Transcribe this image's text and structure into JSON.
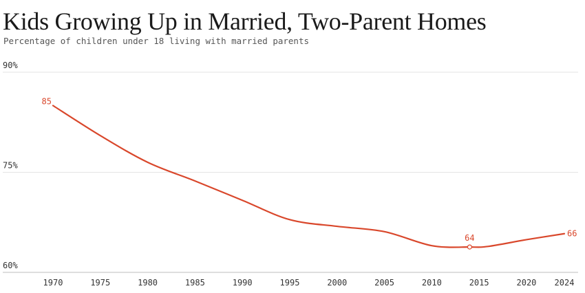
{
  "chart_data": {
    "type": "line",
    "title": "Kids Growing Up in Married, Two-Parent Homes",
    "subtitle": "Percentage of children under 18 living with married parents",
    "xlabel": "",
    "ylabel": "",
    "x_ticks": [
      "1970",
      "1975",
      "1980",
      "1985",
      "1990",
      "1995",
      "2000",
      "2005",
      "2010",
      "2015",
      "2020",
      "2024"
    ],
    "y_ticks": [
      "60%",
      "75%",
      "90%"
    ],
    "xlim": [
      1970,
      2024
    ],
    "ylim": [
      60,
      90
    ],
    "grid": "horizontal",
    "color": "#d9472b",
    "series": [
      {
        "x": [
          1970,
          1975,
          1980,
          1985,
          1990,
          1995,
          2000,
          2005,
          2010,
          2014,
          2016,
          2020,
          2024
        ],
        "values": [
          85,
          80.5,
          76.5,
          73.7,
          70.8,
          67.9,
          66.9,
          66.1,
          64,
          63.8,
          63.9,
          64.9,
          65.8
        ]
      }
    ],
    "data_labels": [
      {
        "x": 1970,
        "y": 85,
        "text": "85"
      },
      {
        "x": 2014,
        "y": 63.8,
        "text": "64"
      },
      {
        "x": 2024,
        "y": 65.8,
        "text": "66"
      }
    ]
  }
}
